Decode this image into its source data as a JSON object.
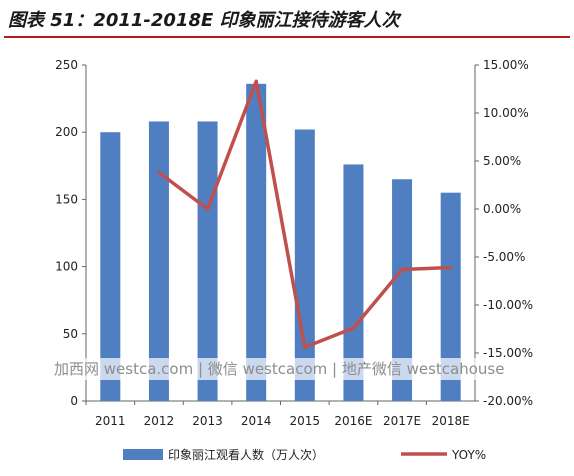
{
  "title": "图表 51：2011-2018E 印象丽江接待游客人次",
  "watermark": "加西网 westca.com | 微信 westcacom | 地产微信 westcahouse",
  "colors": {
    "bar": "#4f7fc1",
    "line": "#c0504d",
    "title_rule": "#b61b1b"
  },
  "chart_data": {
    "type": "bar",
    "categories": [
      "2011",
      "2012",
      "2013",
      "2014",
      "2015",
      "2016E",
      "2017E",
      "2018E"
    ],
    "series": [
      {
        "name": "印象丽江观看人数（万人次）",
        "type": "bar",
        "axis": "left",
        "values": [
          200,
          208,
          208,
          236,
          202,
          176,
          165,
          155
        ]
      },
      {
        "name": "YOY%",
        "type": "line",
        "axis": "right",
        "values": [
          null,
          3.8,
          0.0,
          13.3,
          -14.4,
          -12.4,
          -6.3,
          -6.1
        ]
      }
    ],
    "ylim_left": [
      0,
      250
    ],
    "yticks_left": [
      "0",
      "50",
      "100",
      "150",
      "200",
      "250"
    ],
    "ylim_right": [
      -20,
      15
    ],
    "yticks_right": [
      "-20.00%",
      "-15.00%",
      "-10.00%",
      "-5.00%",
      "0.00%",
      "5.00%",
      "10.00%",
      "15.00%"
    ],
    "grid": false,
    "legend_position": "bottom"
  }
}
